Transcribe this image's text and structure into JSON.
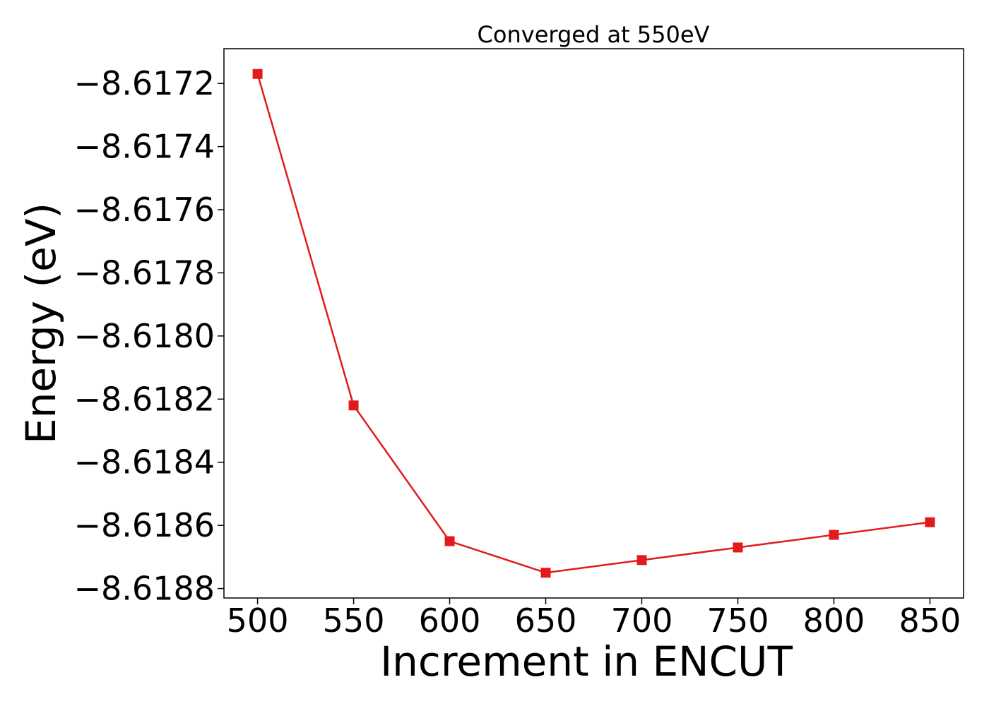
{
  "chart_data": {
    "type": "line",
    "title": "Converged at 550eV",
    "xlabel": "Increment in ENCUT",
    "ylabel": "Energy (eV)",
    "x": [
      500,
      550,
      600,
      650,
      700,
      750,
      800,
      850
    ],
    "series": [
      {
        "values": [
          -8.61717,
          -8.61822,
          -8.61865,
          -8.61875,
          -8.61871,
          -8.61867,
          -8.61863,
          -8.61859
        ],
        "color": "#e31a1c",
        "marker": "square"
      }
    ],
    "xticks": [
      500,
      550,
      600,
      650,
      700,
      750,
      800,
      850
    ],
    "xtick_labels": [
      "500",
      "550",
      "600",
      "650",
      "700",
      "750",
      "800",
      "850"
    ],
    "yticks": [
      -8.6172,
      -8.6174,
      -8.6176,
      -8.6178,
      -8.618,
      -8.6182,
      -8.6184,
      -8.6186,
      -8.6188
    ],
    "ytick_labels": [
      "−8.6172",
      "−8.6174",
      "−8.6176",
      "−8.6178",
      "−8.6180",
      "−8.6182",
      "−8.6184",
      "−8.6186",
      "−8.6188"
    ],
    "xlim": [
      482.5,
      867.5
    ],
    "ylim": [
      -8.61883,
      -8.61709
    ],
    "grid": false,
    "legend": "none"
  }
}
